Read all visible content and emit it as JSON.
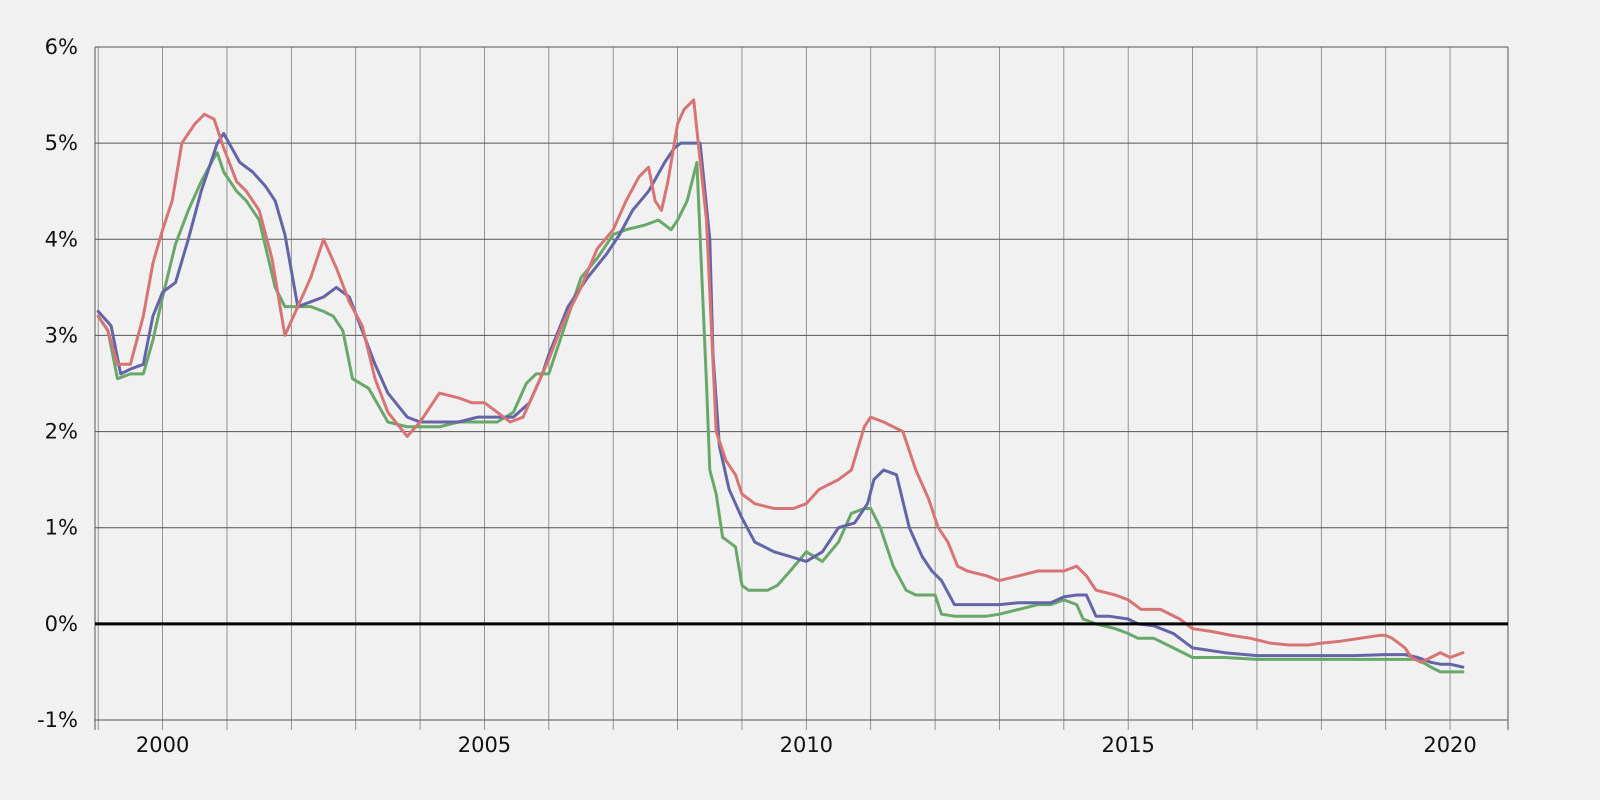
{
  "chart_data": {
    "type": "line",
    "title": "",
    "xlabel": "",
    "ylabel": "",
    "xlim": [
      1998.95,
      2020.9
    ],
    "ylim": [
      -1,
      6
    ],
    "x_ticks": [
      {
        "value": 2000,
        "label": "2000"
      },
      {
        "value": 2005,
        "label": "2005"
      },
      {
        "value": 2010,
        "label": "2010"
      },
      {
        "value": 2015,
        "label": "2015"
      },
      {
        "value": 2020,
        "label": "2020"
      }
    ],
    "y_ticks": [
      {
        "value": -1,
        "label": "-1%"
      },
      {
        "value": 0,
        "label": "0%"
      },
      {
        "value": 1,
        "label": "1%"
      },
      {
        "value": 2,
        "label": "2%"
      },
      {
        "value": 3,
        "label": "3%"
      },
      {
        "value": 4,
        "label": "4%"
      },
      {
        "value": 5,
        "label": "5%"
      },
      {
        "value": 6,
        "label": "6%"
      }
    ],
    "grid": true,
    "grid_minor_x_step": 1,
    "zero_line": true,
    "legend": "none",
    "colors": {
      "background": "#f1f1f1",
      "grid": "#555555",
      "zero_line": "#000000"
    },
    "series": [
      {
        "color": "#68a868",
        "x": [
          1999.0,
          1999.15,
          1999.3,
          1999.5,
          1999.7,
          1999.85,
          2000.0,
          2000.2,
          2000.4,
          2000.6,
          2000.8,
          2000.85,
          2000.95,
          2001.15,
          2001.3,
          2001.5,
          2001.75,
          2001.9,
          2002.1,
          2002.3,
          2002.5,
          2002.65,
          2002.8,
          2002.95,
          2003.2,
          2003.5,
          2003.8,
          2004.0,
          2004.3,
          2004.6,
          2004.9,
          2005.0,
          2005.2,
          2005.45,
          2005.65,
          2005.8,
          2006.0,
          2006.3,
          2006.5,
          2006.75,
          2007.0,
          2007.2,
          2007.5,
          2007.7,
          2007.9,
          2008.0,
          2008.15,
          2008.3,
          2008.45,
          2008.5,
          2008.6,
          2008.7,
          2008.8,
          2008.9,
          2009.0,
          2009.1,
          2009.25,
          2009.4,
          2009.55,
          2009.75,
          2010.0,
          2010.25,
          2010.5,
          2010.7,
          2010.9,
          2011.0,
          2011.15,
          2011.35,
          2011.55,
          2011.7,
          2011.8,
          2011.9,
          2012.0,
          2012.1,
          2012.3,
          2012.5,
          2012.8,
          2013.0,
          2013.3,
          2013.6,
          2013.8,
          2014.0,
          2014.2,
          2014.3,
          2014.5,
          2014.8,
          2015.0,
          2015.15,
          2015.4,
          2015.7,
          2016.0,
          2016.5,
          2017.0,
          2017.5,
          2018.0,
          2018.5,
          2019.0,
          2019.3,
          2019.5,
          2019.7,
          2019.85,
          2020.0,
          2020.2
        ],
        "y": [
          3.2,
          3.05,
          2.55,
          2.6,
          2.6,
          2.95,
          3.4,
          3.95,
          4.3,
          4.6,
          4.85,
          4.9,
          4.7,
          4.5,
          4.4,
          4.2,
          3.5,
          3.3,
          3.3,
          3.3,
          3.25,
          3.2,
          3.05,
          2.55,
          2.45,
          2.1,
          2.05,
          2.05,
          2.05,
          2.1,
          2.1,
          2.1,
          2.1,
          2.2,
          2.5,
          2.6,
          2.6,
          3.2,
          3.6,
          3.8,
          4.05,
          4.1,
          4.15,
          4.2,
          4.1,
          4.2,
          4.4,
          4.8,
          2.5,
          1.6,
          1.35,
          0.9,
          0.85,
          0.8,
          0.4,
          0.35,
          0.35,
          0.35,
          0.4,
          0.55,
          0.75,
          0.65,
          0.85,
          1.15,
          1.2,
          1.2,
          1.0,
          0.6,
          0.35,
          0.3,
          0.3,
          0.3,
          0.3,
          0.1,
          0.08,
          0.08,
          0.08,
          0.1,
          0.15,
          0.2,
          0.2,
          0.25,
          0.2,
          0.05,
          0.0,
          -0.05,
          -0.1,
          -0.15,
          -0.15,
          -0.25,
          -0.35,
          -0.35,
          -0.37,
          -0.37,
          -0.37,
          -0.37,
          -0.37,
          -0.37,
          -0.37,
          -0.45,
          -0.5,
          -0.5,
          -0.5
        ]
      },
      {
        "color": "#6464a8",
        "x": [
          1999.0,
          1999.2,
          1999.35,
          1999.5,
          1999.7,
          1999.85,
          2000.0,
          2000.2,
          2000.4,
          2000.6,
          2000.75,
          2000.85,
          2000.95,
          2001.2,
          2001.4,
          2001.6,
          2001.75,
          2001.9,
          2002.1,
          2002.3,
          2002.5,
          2002.7,
          2002.9,
          2003.1,
          2003.3,
          2003.5,
          2003.8,
          2004.0,
          2004.3,
          2004.6,
          2004.9,
          2005.0,
          2005.2,
          2005.45,
          2005.7,
          2005.9,
          2006.0,
          2006.3,
          2006.6,
          2006.9,
          2007.1,
          2007.3,
          2007.55,
          2007.8,
          2007.95,
          2008.05,
          2008.2,
          2008.35,
          2008.5,
          2008.55,
          2008.65,
          2008.8,
          2008.9,
          2009.0,
          2009.2,
          2009.5,
          2009.75,
          2010.0,
          2010.25,
          2010.5,
          2010.75,
          2010.95,
          2011.05,
          2011.2,
          2011.4,
          2011.6,
          2011.8,
          2011.95,
          2012.1,
          2012.3,
          2012.5,
          2012.8,
          2013.0,
          2013.3,
          2013.6,
          2013.8,
          2014.0,
          2014.2,
          2014.35,
          2014.5,
          2014.7,
          2015.0,
          2015.15,
          2015.4,
          2015.7,
          2016.0,
          2016.5,
          2017.0,
          2017.5,
          2018.0,
          2018.5,
          2019.0,
          2019.3,
          2019.5,
          2019.7,
          2019.85,
          2020.0,
          2020.2
        ],
        "y": [
          3.25,
          3.1,
          2.6,
          2.65,
          2.7,
          3.2,
          3.45,
          3.55,
          4.0,
          4.5,
          4.8,
          5.0,
          5.1,
          4.8,
          4.7,
          4.55,
          4.4,
          4.05,
          3.3,
          3.35,
          3.4,
          3.5,
          3.4,
          3.05,
          2.7,
          2.4,
          2.15,
          2.1,
          2.1,
          2.1,
          2.15,
          2.15,
          2.15,
          2.15,
          2.3,
          2.6,
          2.8,
          3.3,
          3.6,
          3.85,
          4.05,
          4.3,
          4.5,
          4.8,
          4.95,
          5.0,
          5.0,
          5.0,
          4.0,
          2.8,
          1.85,
          1.4,
          1.25,
          1.1,
          0.85,
          0.75,
          0.7,
          0.65,
          0.75,
          1.0,
          1.05,
          1.25,
          1.5,
          1.6,
          1.55,
          1.0,
          0.7,
          0.55,
          0.45,
          0.2,
          0.2,
          0.2,
          0.2,
          0.22,
          0.22,
          0.22,
          0.28,
          0.3,
          0.3,
          0.08,
          0.08,
          0.05,
          0.0,
          -0.02,
          -0.1,
          -0.25,
          -0.3,
          -0.33,
          -0.33,
          -0.33,
          -0.33,
          -0.32,
          -0.32,
          -0.35,
          -0.4,
          -0.42,
          -0.42,
          -0.45
        ]
      },
      {
        "color": "#d87474",
        "x": [
          1999.0,
          1999.15,
          1999.3,
          1999.5,
          1999.7,
          1999.85,
          2000.0,
          2000.15,
          2000.3,
          2000.5,
          2000.65,
          2000.8,
          2000.95,
          2001.15,
          2001.3,
          2001.5,
          2001.7,
          2001.9,
          2002.1,
          2002.3,
          2002.5,
          2002.7,
          2002.9,
          2003.1,
          2003.3,
          2003.5,
          2003.8,
          2004.0,
          2004.3,
          2004.6,
          2004.8,
          2005.0,
          2005.2,
          2005.4,
          2005.6,
          2005.8,
          2006.0,
          2006.2,
          2006.5,
          2006.75,
          2007.0,
          2007.2,
          2007.4,
          2007.55,
          2007.65,
          2007.75,
          2007.85,
          2008.0,
          2008.1,
          2008.25,
          2008.45,
          2008.6,
          2008.75,
          2008.9,
          2009.0,
          2009.2,
          2009.5,
          2009.8,
          2010.0,
          2010.2,
          2010.5,
          2010.7,
          2010.9,
          2011.0,
          2011.2,
          2011.5,
          2011.7,
          2011.9,
          2012.05,
          2012.2,
          2012.35,
          2012.5,
          2012.8,
          2013.0,
          2013.3,
          2013.6,
          2013.8,
          2014.0,
          2014.2,
          2014.35,
          2014.5,
          2014.8,
          2015.0,
          2015.2,
          2015.5,
          2015.8,
          2016.0,
          2016.3,
          2016.6,
          2016.9,
          2017.2,
          2017.5,
          2017.8,
          2018.0,
          2018.3,
          2018.6,
          2018.9,
          2019.0,
          2019.1,
          2019.2,
          2019.3,
          2019.4,
          2019.55,
          2019.7,
          2019.85,
          2020.0,
          2020.2
        ],
        "y": [
          3.2,
          3.05,
          2.7,
          2.7,
          3.2,
          3.75,
          4.1,
          4.4,
          5.0,
          5.2,
          5.3,
          5.25,
          4.95,
          4.6,
          4.5,
          4.3,
          3.8,
          3.0,
          3.3,
          3.6,
          4.0,
          3.7,
          3.35,
          3.1,
          2.55,
          2.2,
          1.95,
          2.1,
          2.4,
          2.35,
          2.3,
          2.3,
          2.2,
          2.1,
          2.15,
          2.45,
          2.75,
          3.1,
          3.5,
          3.9,
          4.1,
          4.4,
          4.65,
          4.75,
          4.4,
          4.3,
          4.6,
          5.2,
          5.35,
          5.45,
          4.2,
          2.0,
          1.7,
          1.55,
          1.35,
          1.25,
          1.2,
          1.2,
          1.25,
          1.4,
          1.5,
          1.6,
          2.05,
          2.15,
          2.1,
          2.0,
          1.6,
          1.3,
          1.0,
          0.85,
          0.6,
          0.55,
          0.5,
          0.45,
          0.5,
          0.55,
          0.55,
          0.55,
          0.6,
          0.5,
          0.35,
          0.3,
          0.25,
          0.15,
          0.15,
          0.05,
          -0.05,
          -0.08,
          -0.12,
          -0.15,
          -0.2,
          -0.22,
          -0.22,
          -0.2,
          -0.18,
          -0.15,
          -0.12,
          -0.12,
          -0.15,
          -0.2,
          -0.25,
          -0.35,
          -0.4,
          -0.35,
          -0.3,
          -0.35,
          -0.3
        ]
      }
    ]
  }
}
